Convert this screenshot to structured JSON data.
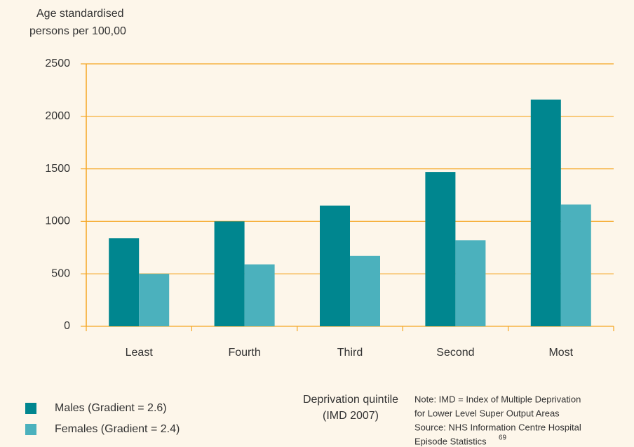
{
  "chart_data": {
    "type": "bar",
    "y_label": [
      "Age standardised",
      "persons per 100,00"
    ],
    "x_label": [
      "Deprivation quintile",
      "(IMD 2007)"
    ],
    "note": [
      "Note: IMD = Index of Multiple Deprivation",
      "for Lower Level Super Output Areas",
      "Source: NHS Information Centre Hospital",
      "Episode Statistics"
    ],
    "note_reference": "69",
    "categories": [
      "Least",
      "Fourth",
      "Third",
      "Second",
      "Most"
    ],
    "series": [
      {
        "name": "Males (Gradient = 2.6)",
        "color": "#00868f",
        "values": [
          840,
          1000,
          1150,
          1470,
          2160
        ]
      },
      {
        "name": "Females (Gradient = 2.4)",
        "color": "#4bb1bd",
        "values": [
          500,
          590,
          670,
          820,
          1160
        ]
      }
    ],
    "ylim": [
      0,
      2500
    ],
    "yticks": [
      0,
      500,
      1000,
      1500,
      2000,
      2500
    ],
    "grid": true,
    "axis_color": "#f5a623"
  }
}
